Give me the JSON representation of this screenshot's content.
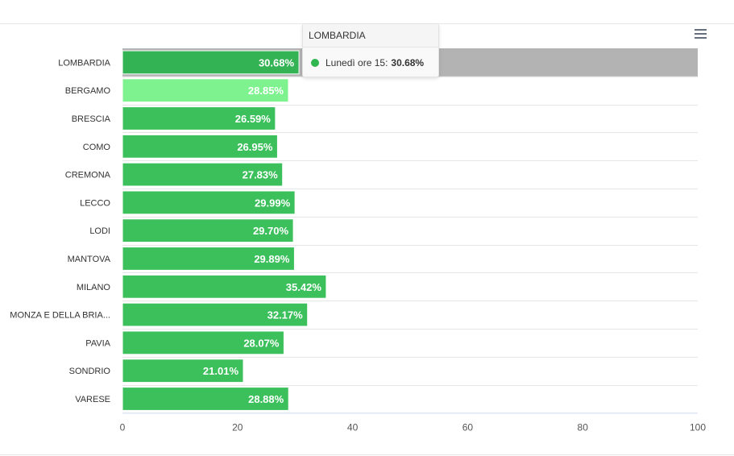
{
  "chart_data": {
    "type": "bar",
    "orientation": "horizontal",
    "categories": [
      "LOMBARDIA",
      "BERGAMO",
      "BRESCIA",
      "COMO",
      "CREMONA",
      "LECCO",
      "LODI",
      "MANTOVA",
      "MILANO",
      "MONZA E DELLA BRIA...",
      "PAVIA",
      "SONDRIO",
      "VARESE"
    ],
    "series": [
      {
        "name": "Lunedì ore 15",
        "values": [
          30.68,
          28.85,
          26.59,
          26.95,
          27.83,
          29.99,
          29.7,
          29.89,
          35.42,
          32.17,
          28.07,
          21.01,
          28.88
        ]
      }
    ],
    "data_labels": [
      "30.68%",
      "28.85%",
      "26.59%",
      "26.95%",
      "27.83%",
      "29.99%",
      "29.70%",
      "29.89%",
      "35.42%",
      "32.17%",
      "28.07%",
      "21.01%",
      "28.88%"
    ],
    "x_ticks": [
      "0",
      "20",
      "40",
      "60",
      "80",
      "100"
    ],
    "xlim": [
      0,
      100
    ],
    "grid": true,
    "hovered_index": 0,
    "highlighted_index": 1,
    "colors": {
      "bar": "#3cc05c",
      "bar_hover": "#34b355",
      "bar_highlight": "#7ef28e",
      "hover_band": "#b3b3b3",
      "tooltip_dot": "#2fb64f"
    }
  },
  "tooltip": {
    "title": "LOMBARDIA",
    "series_label": "Lunedì ore 15:",
    "value": "30.68%"
  },
  "toolbar": {
    "menu_icon": "hamburger-menu-icon"
  }
}
